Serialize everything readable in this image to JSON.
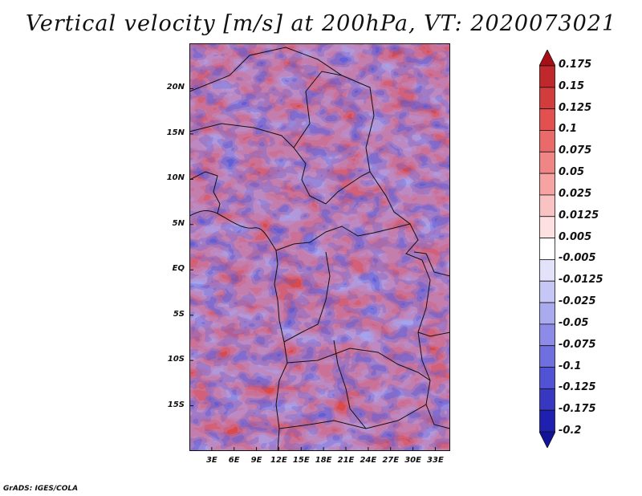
{
  "title": "Vertical velocity [m/s] at 200hPa, VT: 2020073021",
  "credit": "GrADS: IGES/COLA",
  "map": {
    "lon_range": [
      0,
      35
    ],
    "lat_range": [
      -20,
      25
    ],
    "lat_labels": [
      "20N",
      "15N",
      "10N",
      "5N",
      "EQ",
      "5S",
      "10S",
      "15S"
    ],
    "lat_values": [
      20,
      15,
      10,
      5,
      0,
      -5,
      -10,
      -15
    ],
    "lon_labels": [
      "3E",
      "6E",
      "9E",
      "12E",
      "15E",
      "18E",
      "21E",
      "24E",
      "27E",
      "30E",
      "33E"
    ],
    "lon_values": [
      3,
      6,
      9,
      12,
      15,
      18,
      21,
      24,
      27,
      30,
      33
    ]
  },
  "colorbar": {
    "labels": [
      "0.175",
      "0.15",
      "0.125",
      "0.1",
      "0.075",
      "0.05",
      "0.025",
      "0.0125",
      "0.005",
      "-0.005",
      "-0.0125",
      "-0.025",
      "-0.05",
      "-0.075",
      "-0.1",
      "-0.125",
      "-0.175",
      "-0.2"
    ],
    "colors": [
      "#a50f15",
      "#c0282c",
      "#d33c3c",
      "#e25050",
      "#ea6a6a",
      "#f08585",
      "#f5a3a3",
      "#f9c3c3",
      "#fde1e1",
      "#ffffff",
      "#e2e2fb",
      "#c7c7f5",
      "#aaaaef",
      "#8c8ce8",
      "#6f6fe0",
      "#5252d4",
      "#3737c2",
      "#2020b0",
      "#13139a"
    ]
  }
}
